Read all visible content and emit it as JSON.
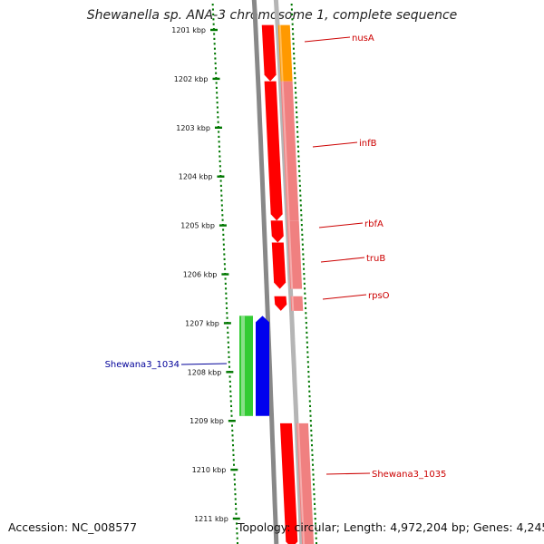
{
  "title": "Shewanella sp. ANA-3 chromosome 1, complete sequence",
  "accession_label": "Accession: NC_008577",
  "topology_label": "Topology: circular; Length: 4,972,204 bp; Genes: 4,245",
  "colors": {
    "forward_gene": "#ff0000",
    "forward_gene_light": "#f08080",
    "highlight_gene": "#ff9900",
    "reverse_gene": "#0000ee",
    "reverse_gene_light": "#33cc33",
    "forward_label": "#cc0000",
    "reverse_label": "#000099",
    "tick": "#007700",
    "backbone": "#888888"
  },
  "kbp_ticks": [
    {
      "label": "1201 kbp",
      "kbp": 1201
    },
    {
      "label": "1202 kbp",
      "kbp": 1202
    },
    {
      "label": "1203 kbp",
      "kbp": 1203
    },
    {
      "label": "1204 kbp",
      "kbp": 1204
    },
    {
      "label": "1205 kbp",
      "kbp": 1205
    },
    {
      "label": "1206 kbp",
      "kbp": 1206
    },
    {
      "label": "1207 kbp",
      "kbp": 1207
    },
    {
      "label": "1208 kbp",
      "kbp": 1208
    },
    {
      "label": "1209 kbp",
      "kbp": 1209
    },
    {
      "label": "1210 kbp",
      "kbp": 1210
    },
    {
      "label": "1211 kbp",
      "kbp": 1211
    }
  ],
  "genes": [
    {
      "name": "nusA",
      "strand": "+",
      "start_kbp": 1200.9,
      "end_kbp": 1202.05,
      "highlight": true
    },
    {
      "name": "infB",
      "strand": "+",
      "start_kbp": 1202.05,
      "end_kbp": 1204.9
    },
    {
      "name": "rbfA",
      "strand": "+",
      "start_kbp": 1204.9,
      "end_kbp": 1205.35
    },
    {
      "name": "truB",
      "strand": "+",
      "start_kbp": 1205.35,
      "end_kbp": 1206.3
    },
    {
      "name": "rpsO",
      "strand": "+",
      "start_kbp": 1206.45,
      "end_kbp": 1206.75
    },
    {
      "name": "Shewana3_1034",
      "strand": "-",
      "start_kbp": 1206.85,
      "end_kbp": 1208.9
    },
    {
      "name": "Shewana3_1035",
      "strand": "+",
      "start_kbp": 1209.05,
      "end_kbp": 1211.6
    }
  ]
}
